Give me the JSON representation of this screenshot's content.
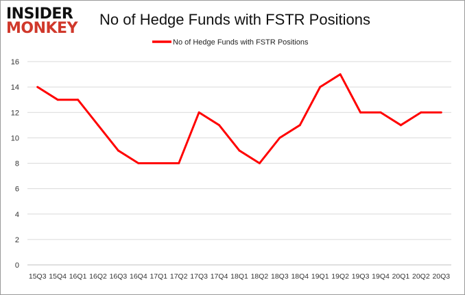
{
  "logo": {
    "line1": "INSIDER",
    "line2": "MONKEY"
  },
  "chart_data": {
    "type": "line",
    "title": "No of Hedge Funds with FSTR Positions",
    "categories": [
      "15Q3",
      "15Q4",
      "16Q1",
      "16Q2",
      "16Q3",
      "16Q4",
      "17Q1",
      "17Q2",
      "17Q3",
      "17Q4",
      "18Q1",
      "18Q2",
      "18Q3",
      "18Q4",
      "19Q1",
      "19Q2",
      "19Q3",
      "19Q4",
      "20Q1",
      "20Q2",
      "20Q3"
    ],
    "series": [
      {
        "name": "No of Hedge Funds with FSTR Positions",
        "color": "#ff0000",
        "values": [
          14,
          13,
          13,
          11,
          9,
          8,
          8,
          8,
          12,
          11,
          9,
          8,
          10,
          11,
          14,
          15,
          12,
          12,
          11,
          12,
          12
        ]
      }
    ],
    "ylim": [
      0,
      16
    ],
    "yticks": [
      0,
      2,
      4,
      6,
      8,
      10,
      12,
      14,
      16
    ],
    "grid": true,
    "legend": "top-center"
  }
}
